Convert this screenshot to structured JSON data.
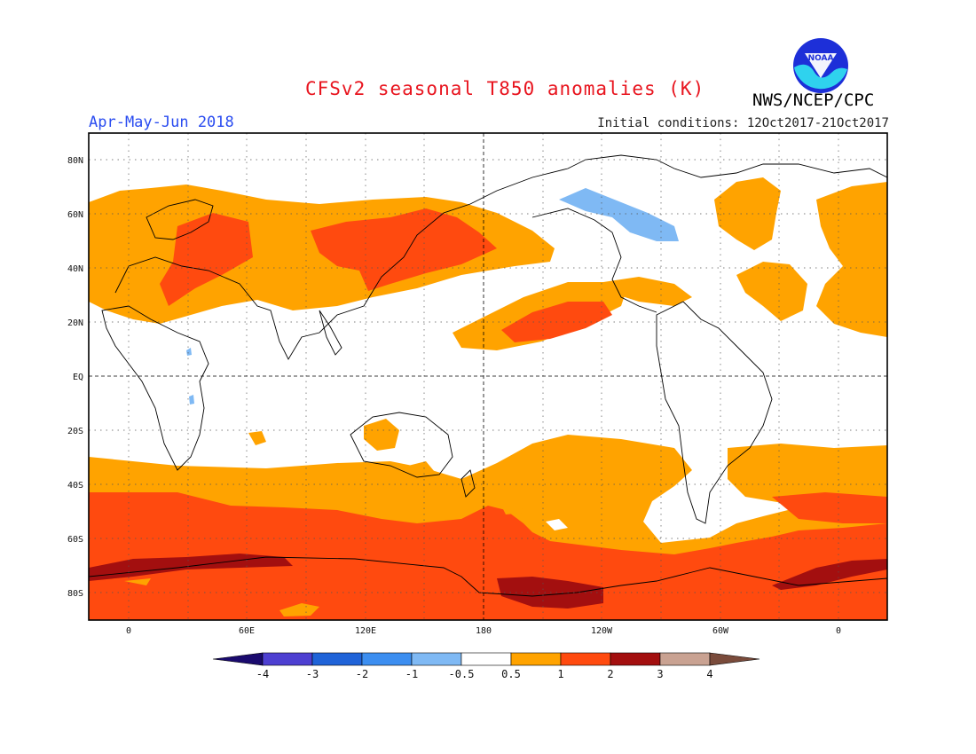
{
  "title": "CFSv2 seasonal T850 anomalies (K)",
  "period": "Apr-May-Jun 2018",
  "initial_conditions": "Initial conditions: 12Oct2017-21Oct2017",
  "agency": "NWS/NCEP/CPC",
  "logo_text": "NOAA",
  "map": {
    "lat_labels": [
      "80N",
      "60N",
      "40N",
      "20N",
      "EQ",
      "20S",
      "40S",
      "60S",
      "80S"
    ],
    "lon_labels": [
      "0",
      "60E",
      "120E",
      "180",
      "120W",
      "60W",
      "0"
    ]
  },
  "colorbar": {
    "labels": [
      "-4",
      "-3",
      "-2",
      "-1",
      "-0.5",
      "0.5",
      "1",
      "2",
      "3",
      "4"
    ],
    "colors": [
      "#1a0a6e",
      "#4d3fd1",
      "#1f63d8",
      "#3c8ef0",
      "#7fb9f4",
      "#ffffff",
      "#ffa300",
      "#ff4a0f",
      "#a30f0f",
      "#c9a292",
      "#7a4b3b"
    ]
  }
}
